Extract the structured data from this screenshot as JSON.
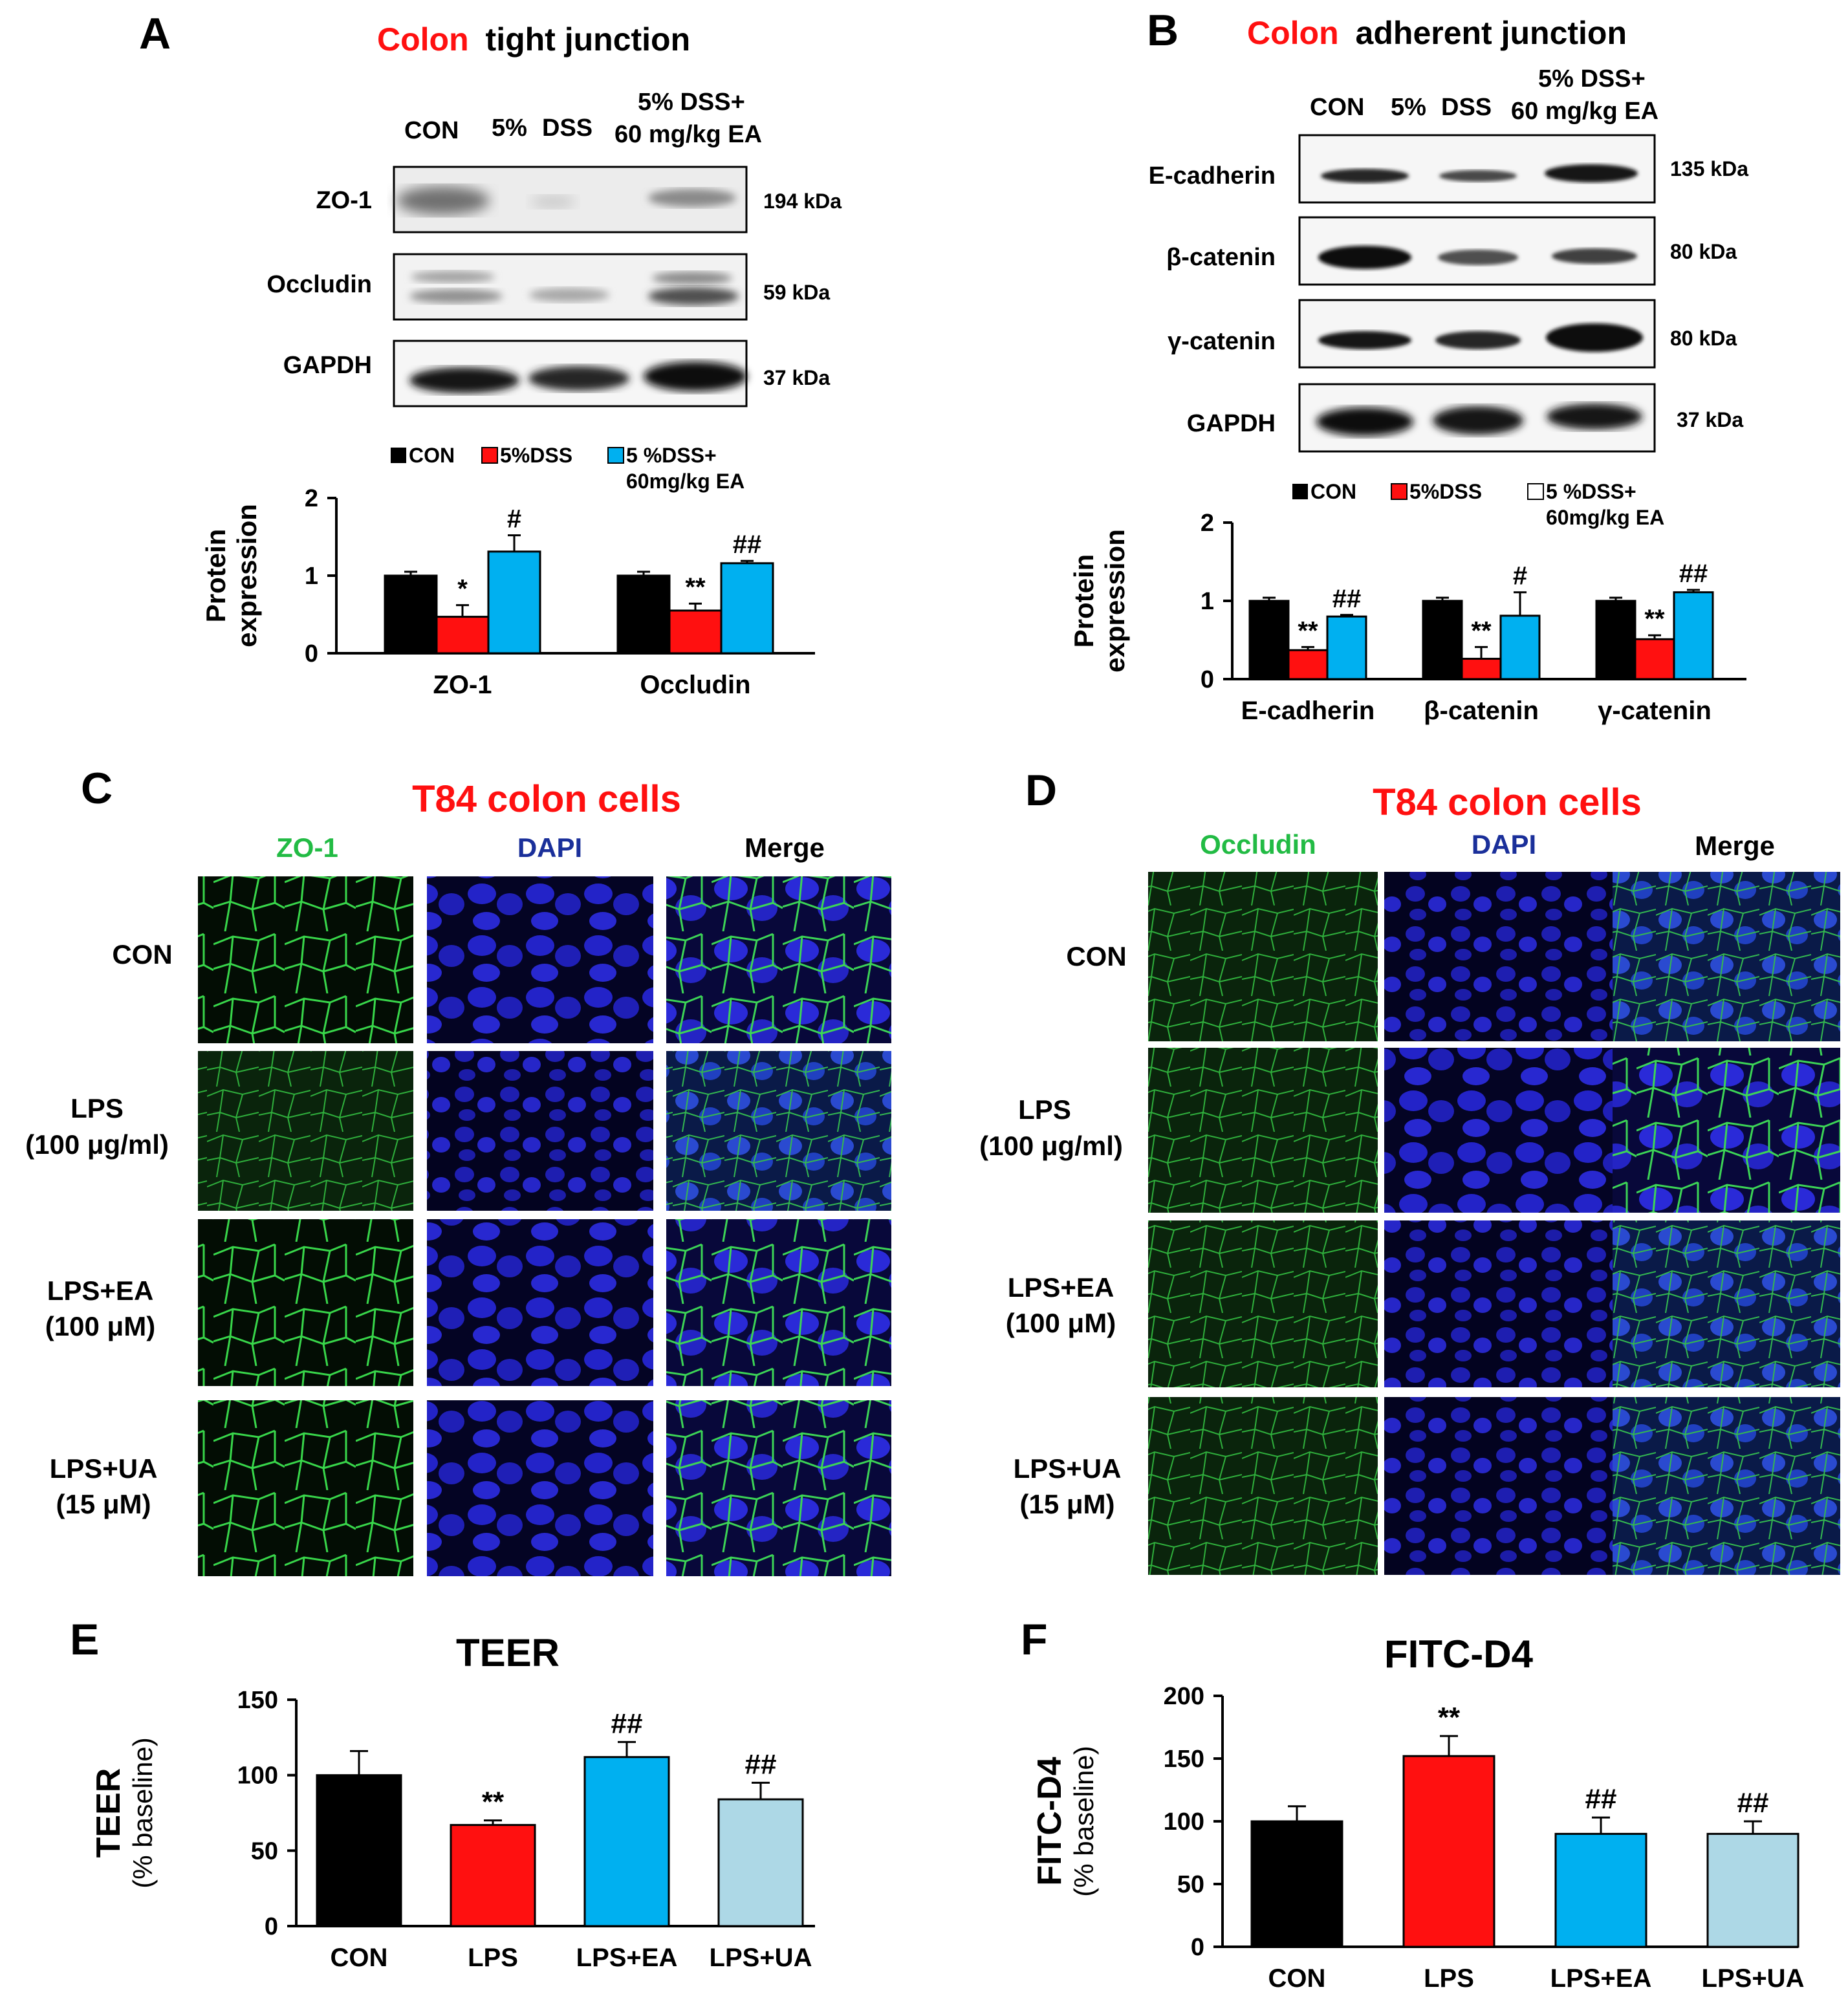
{
  "colors": {
    "red": "#ff1010",
    "black": "#000000",
    "blue_bar": "#00b0f0",
    "light_blue_bar": "#add8e6",
    "green_label": "#22bb44",
    "dapi_label": "#1a2f9a",
    "cell_green": "#2ecc40",
    "cell_blue": "#1a1aee"
  },
  "panelA": {
    "letter": "A",
    "title_red": "Colon",
    "title_rest": "tight junction",
    "lanes": [
      "CON",
      "5%",
      "DSS",
      "5%  DSS+",
      "60 mg/kg EA"
    ],
    "blots": [
      {
        "name": "ZO-1",
        "kda": "194 kDa"
      },
      {
        "name": "Occludin",
        "kda": "59 kDa"
      },
      {
        "name": "GAPDH",
        "kda": "37 kDa"
      }
    ],
    "legend": [
      "CON",
      "5%DSS",
      "5 %DSS+",
      "60mg/kg EA"
    ]
  },
  "panelB": {
    "letter": "B",
    "title_red": "Colon",
    "title_rest": "adherent  junction",
    "lanes": [
      "CON",
      "5%",
      "DSS",
      "5%  DSS+",
      "60 mg/kg EA"
    ],
    "blots": [
      {
        "name": "E-cadherin",
        "kda": "135 kDa"
      },
      {
        "name": "β-catenin",
        "kda": "80 kDa"
      },
      {
        "name": "γ-catenin",
        "kda": "80 kDa"
      },
      {
        "name": "GAPDH",
        "kda": "37 kDa"
      }
    ],
    "legend": [
      "CON",
      "5%DSS",
      "5 %DSS+",
      "60mg/kg EA"
    ]
  },
  "panelC": {
    "letter": "C",
    "title": "T84 colon cells",
    "columns": [
      "ZO-1",
      "DAPI",
      "Merge"
    ],
    "rows": [
      [
        "CON"
      ],
      [
        "LPS",
        "(100 μg/ml)"
      ],
      [
        "LPS+EA",
        "(100 μM)"
      ],
      [
        "LPS+UA",
        "(15 μM)"
      ]
    ]
  },
  "panelD": {
    "letter": "D",
    "title": "T84 colon cells",
    "columns": [
      "Occludin",
      "DAPI",
      "Merge"
    ],
    "rows": [
      [
        "CON"
      ],
      [
        "LPS",
        "(100 μg/ml)"
      ],
      [
        "LPS+EA",
        "(100 μM)"
      ],
      [
        "LPS+UA",
        "(15 μM)"
      ]
    ]
  },
  "panelE": {
    "letter": "E"
  },
  "panelF": {
    "letter": "F"
  },
  "chart_data": [
    {
      "panel": "A",
      "type": "bar",
      "title": "",
      "ylabel": "Protein expression",
      "ylim": [
        0,
        2
      ],
      "yticks": [
        0,
        1,
        2
      ],
      "categories": [
        "ZO-1",
        "Occludin"
      ],
      "series": [
        {
          "name": "CON",
          "color": "#000000",
          "values": [
            1.0,
            1.0
          ],
          "errors": [
            0.05,
            0.05
          ]
        },
        {
          "name": "5%DSS",
          "color": "#ff1010",
          "values": [
            0.47,
            0.55
          ],
          "errors": [
            0.15,
            0.09
          ]
        },
        {
          "name": "5 %DSS+ 60mg/kg EA",
          "color": "#00b0f0",
          "values": [
            1.31,
            1.16
          ],
          "errors": [
            0.21,
            0.03
          ]
        }
      ],
      "annotations": [
        {
          "category": "ZO-1",
          "series": "5%DSS",
          "text": "*"
        },
        {
          "category": "ZO-1",
          "series": "5 %DSS+ 60mg/kg EA",
          "text": "#"
        },
        {
          "category": "Occludin",
          "series": "5%DSS",
          "text": "**"
        },
        {
          "category": "Occludin",
          "series": "5 %DSS+ 60mg/kg EA",
          "text": "##"
        }
      ]
    },
    {
      "panel": "B",
      "type": "bar",
      "title": "",
      "ylabel": "Protein expression",
      "ylim": [
        0,
        2
      ],
      "yticks": [
        0,
        1,
        2
      ],
      "categories": [
        "E-cadherin",
        "β-catenin",
        "γ-catenin"
      ],
      "series": [
        {
          "name": "CON",
          "color": "#000000",
          "values": [
            1.0,
            1.0,
            1.0
          ],
          "errors": [
            0.04,
            0.04,
            0.04
          ]
        },
        {
          "name": "5%DSS",
          "color": "#ff1010",
          "values": [
            0.37,
            0.26,
            0.51
          ],
          "errors": [
            0.04,
            0.15,
            0.05
          ]
        },
        {
          "name": "5 %DSS+ 60mg/kg EA",
          "color": "#00b0f0",
          "values": [
            0.8,
            0.81,
            1.11
          ],
          "errors": [
            0.02,
            0.3,
            0.03
          ]
        }
      ],
      "annotations": [
        {
          "category": "E-cadherin",
          "series": "5%DSS",
          "text": "**"
        },
        {
          "category": "E-cadherin",
          "series": "5 %DSS+ 60mg/kg EA",
          "text": "##"
        },
        {
          "category": "β-catenin",
          "series": "5%DSS",
          "text": "**"
        },
        {
          "category": "β-catenin",
          "series": "5 %DSS+ 60mg/kg EA",
          "text": "#"
        },
        {
          "category": "γ-catenin",
          "series": "5%DSS",
          "text": "**"
        },
        {
          "category": "γ-catenin",
          "series": "5 %DSS+ 60mg/kg EA",
          "text": "##"
        }
      ]
    },
    {
      "panel": "E",
      "type": "bar",
      "title": "TEER",
      "ylabel": "TEER",
      "ylabel2": "(% baseline)",
      "ylim": [
        0,
        150
      ],
      "yticks": [
        0,
        50,
        100,
        150
      ],
      "categories": [
        "CON",
        "LPS",
        "LPS+EA",
        "LPS+UA"
      ],
      "values": [
        100,
        67,
        112,
        84
      ],
      "errors": [
        16,
        3,
        10,
        11
      ],
      "colors": [
        "#000000",
        "#ff1010",
        "#00b0f0",
        "#add8e6"
      ],
      "annotations": [
        "",
        "**",
        "##",
        "##"
      ]
    },
    {
      "panel": "F",
      "type": "bar",
      "title": "FITC-D4",
      "ylabel": "FITC-D4",
      "ylabel2": "(% baseline)",
      "ylim": [
        0,
        200
      ],
      "yticks": [
        0,
        50,
        100,
        150,
        200
      ],
      "categories": [
        "CON",
        "LPS",
        "LPS+EA",
        "LPS+UA"
      ],
      "values": [
        100,
        152,
        90,
        90
      ],
      "errors": [
        12,
        16,
        13,
        10
      ],
      "colors": [
        "#000000",
        "#ff1010",
        "#00b0f0",
        "#add8e6"
      ],
      "annotations": [
        "",
        "**",
        "##",
        "##"
      ]
    }
  ]
}
